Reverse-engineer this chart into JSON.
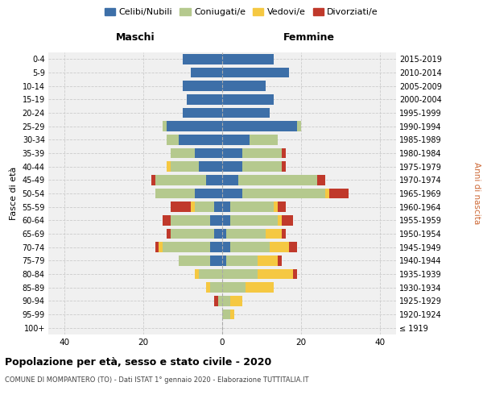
{
  "age_groups": [
    "100+",
    "95-99",
    "90-94",
    "85-89",
    "80-84",
    "75-79",
    "70-74",
    "65-69",
    "60-64",
    "55-59",
    "50-54",
    "45-49",
    "40-44",
    "35-39",
    "30-34",
    "25-29",
    "20-24",
    "15-19",
    "10-14",
    "5-9",
    "0-4"
  ],
  "birth_years": [
    "≤ 1919",
    "1920-1924",
    "1925-1929",
    "1930-1934",
    "1935-1939",
    "1940-1944",
    "1945-1949",
    "1950-1954",
    "1955-1959",
    "1960-1964",
    "1965-1969",
    "1970-1974",
    "1975-1979",
    "1980-1984",
    "1985-1989",
    "1990-1994",
    "1995-1999",
    "2000-2004",
    "2005-2009",
    "2010-2014",
    "2015-2019"
  ],
  "male": {
    "celibi": [
      0,
      0,
      0,
      0,
      0,
      3,
      3,
      2,
      3,
      2,
      7,
      4,
      6,
      7,
      11,
      14,
      10,
      9,
      10,
      8,
      10
    ],
    "coniugati": [
      0,
      0,
      1,
      3,
      6,
      8,
      12,
      11,
      10,
      5,
      10,
      13,
      7,
      6,
      3,
      1,
      0,
      0,
      0,
      0,
      0
    ],
    "vedovi": [
      0,
      0,
      0,
      1,
      1,
      0,
      1,
      0,
      0,
      1,
      0,
      0,
      1,
      0,
      0,
      0,
      0,
      0,
      0,
      0,
      0
    ],
    "divorziati": [
      0,
      0,
      1,
      0,
      0,
      0,
      1,
      1,
      2,
      5,
      0,
      1,
      0,
      0,
      0,
      0,
      0,
      0,
      0,
      0,
      0
    ]
  },
  "female": {
    "nubili": [
      0,
      0,
      0,
      0,
      0,
      1,
      2,
      1,
      2,
      2,
      5,
      4,
      5,
      5,
      7,
      19,
      12,
      13,
      11,
      17,
      13
    ],
    "coniugate": [
      0,
      2,
      2,
      6,
      9,
      8,
      10,
      10,
      12,
      11,
      21,
      20,
      10,
      10,
      7,
      1,
      0,
      0,
      0,
      0,
      0
    ],
    "vedove": [
      0,
      1,
      3,
      7,
      9,
      5,
      5,
      4,
      1,
      1,
      1,
      0,
      0,
      0,
      0,
      0,
      0,
      0,
      0,
      0,
      0
    ],
    "divorziate": [
      0,
      0,
      0,
      0,
      1,
      1,
      2,
      1,
      3,
      2,
      5,
      2,
      1,
      1,
      0,
      0,
      0,
      0,
      0,
      0,
      0
    ]
  },
  "colors": {
    "celibi": "#3d6fa8",
    "coniugati": "#b5c98e",
    "vedovi": "#f5c842",
    "divorziati": "#c0392b"
  },
  "xlim": 44,
  "title": "Popolazione per età, sesso e stato civile - 2020",
  "subtitle": "COMUNE DI MOMPANTERO (TO) - Dati ISTAT 1° gennaio 2020 - Elaborazione TUTTITALIA.IT",
  "legend_labels": [
    "Celibi/Nubili",
    "Coniugati/e",
    "Vedovi/e",
    "Divorziati/e"
  ],
  "xlabel_left": "Maschi",
  "xlabel_right": "Femmine",
  "ylabel_left": "Fasce di età",
  "ylabel_right": "Anni di nascita"
}
